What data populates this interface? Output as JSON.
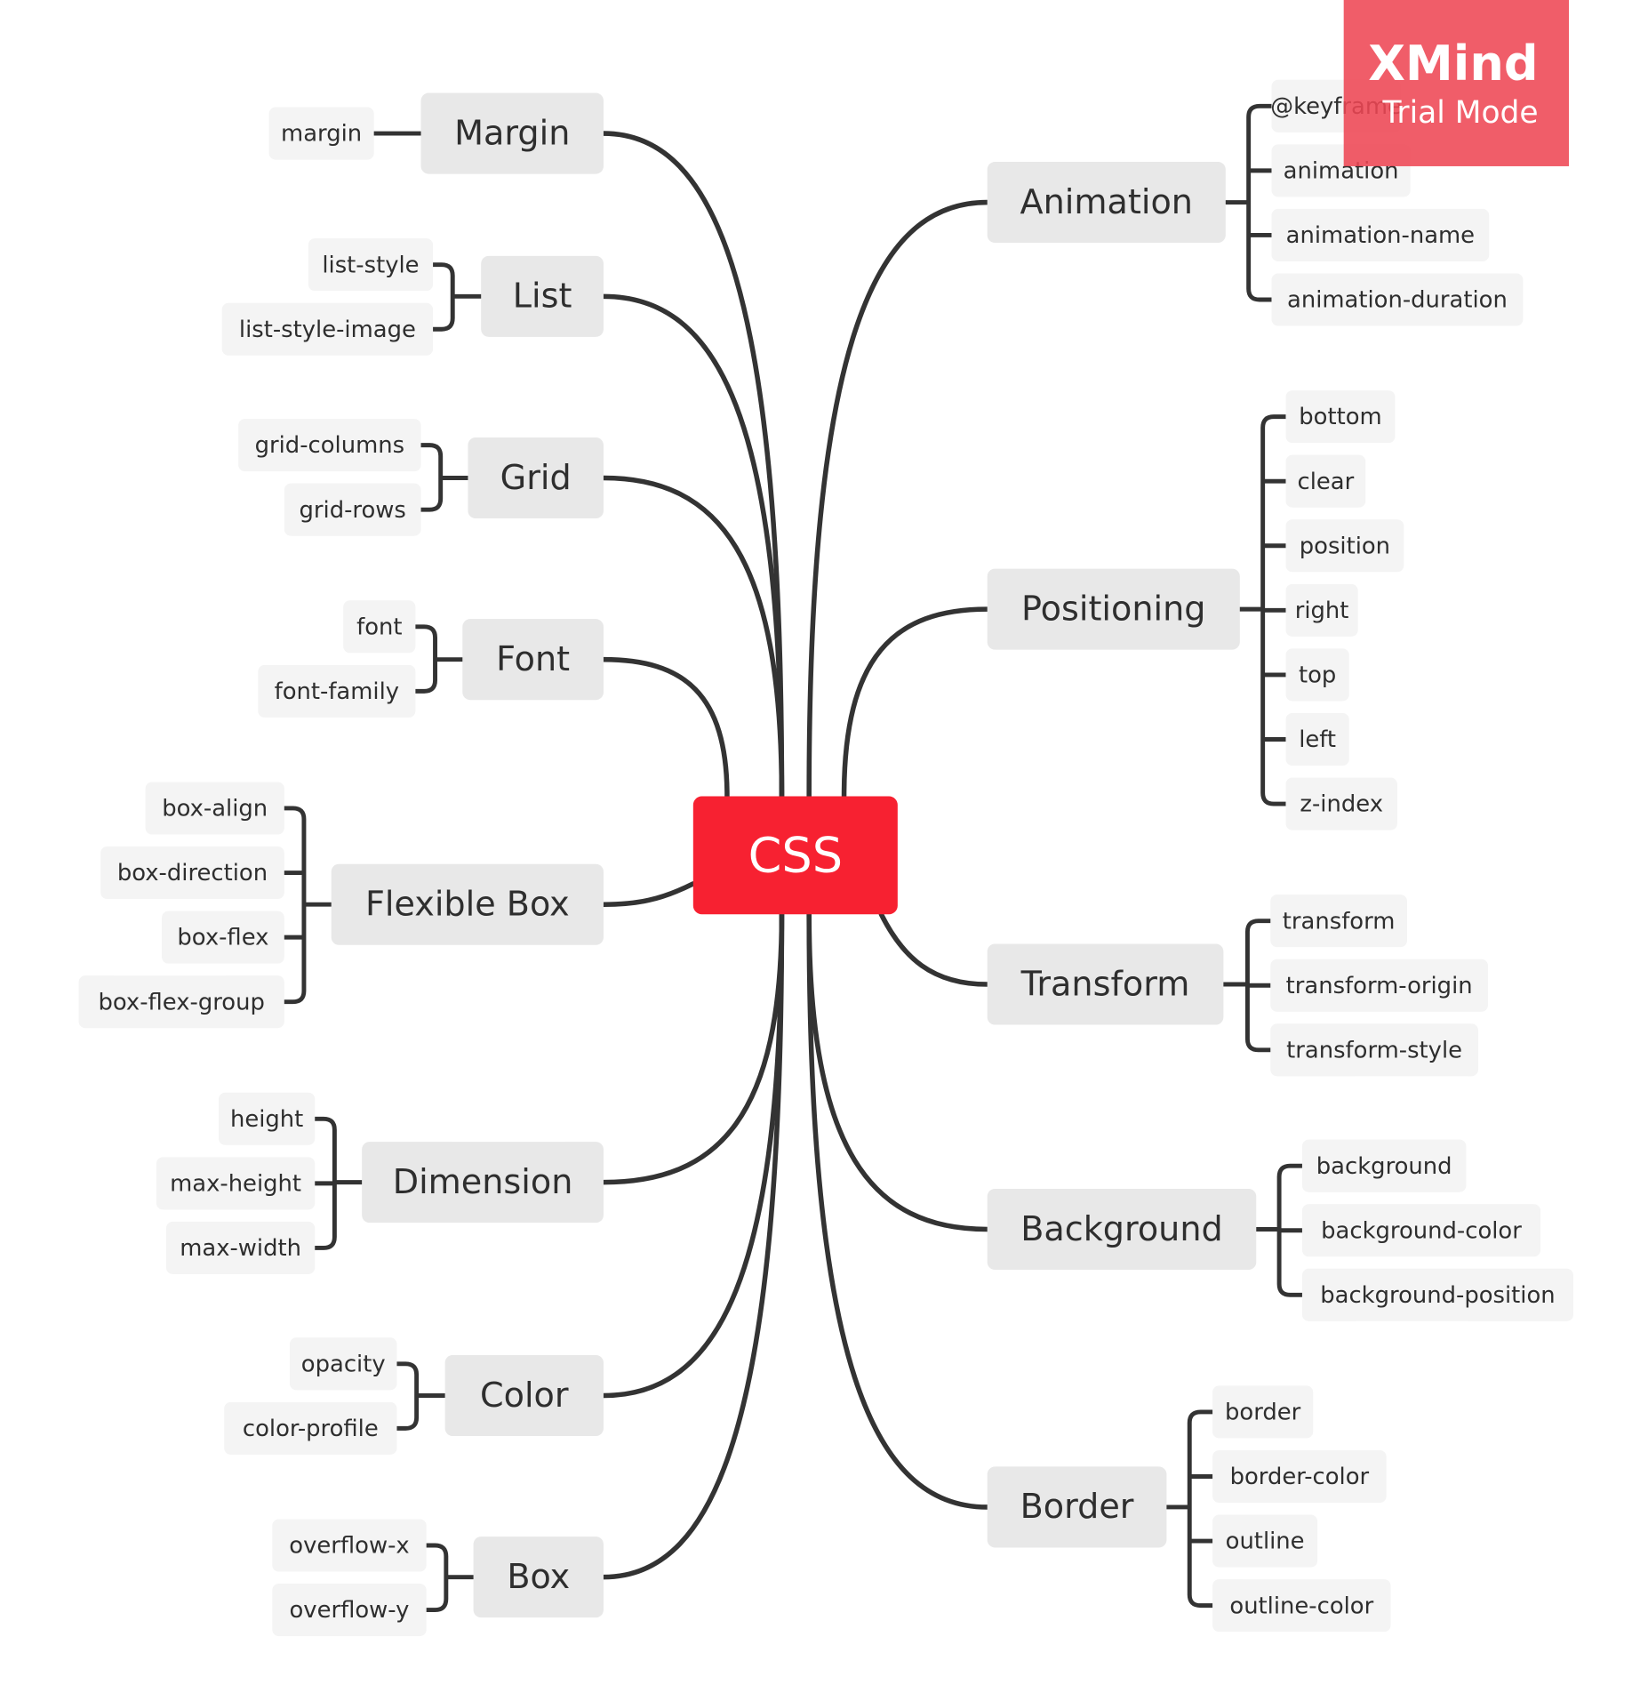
{
  "colors": {
    "central_fill": "#f72131",
    "central_text": "#ffffff",
    "main_fill": "#e8e8e8",
    "sub_fill": "#f4f4f4",
    "text": "#2e2e2e",
    "connector": "#333333",
    "watermark": "#ee4754"
  },
  "watermark": {
    "line1": "XMind",
    "line2": "Trial Mode"
  },
  "central": {
    "label": "CSS"
  },
  "branches": {
    "margin": {
      "label": "Margin",
      "children": [
        "margin"
      ]
    },
    "list": {
      "label": "List",
      "children": [
        "list-style",
        "list-style-image"
      ]
    },
    "grid": {
      "label": "Grid",
      "children": [
        "grid-columns",
        "grid-rows"
      ]
    },
    "font": {
      "label": "Font",
      "children": [
        "font",
        "font-family"
      ]
    },
    "flexbox": {
      "label": "Flexible Box",
      "children": [
        "box-align",
        "box-direction",
        "box-flex",
        "box-flex-group"
      ]
    },
    "dimension": {
      "label": "Dimension",
      "children": [
        "height",
        "max-height",
        "max-width"
      ]
    },
    "color": {
      "label": "Color",
      "children": [
        "opacity",
        "color-profile"
      ]
    },
    "box": {
      "label": "Box",
      "children": [
        "overflow-x",
        "overflow-y"
      ]
    },
    "animation": {
      "label": "Animation",
      "children": [
        "@keyframe",
        "animation",
        "animation-name",
        "animation-duration"
      ]
    },
    "positioning": {
      "label": "Positioning",
      "children": [
        "bottom",
        "clear",
        "position",
        "right",
        "top",
        "left",
        "z-index"
      ]
    },
    "transform": {
      "label": "Transform",
      "children": [
        "transform",
        "transform-origin",
        "transform-style"
      ]
    },
    "background": {
      "label": "Background",
      "children": [
        "background",
        "background-color",
        "background-position"
      ]
    },
    "border": {
      "label": "Border",
      "children": [
        "border",
        "border-color",
        "outline",
        "outline-color"
      ]
    }
  }
}
